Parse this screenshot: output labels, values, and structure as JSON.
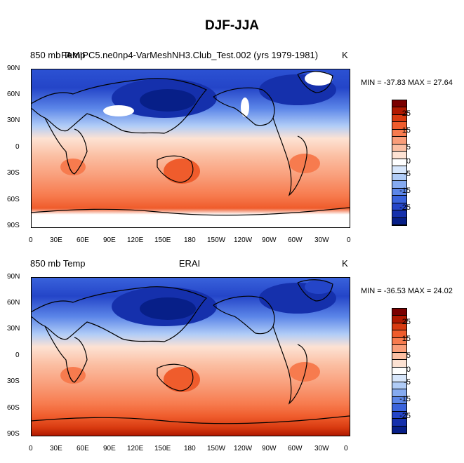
{
  "figure_title": "DJF-JJA",
  "panels": [
    {
      "left_label": "850 mb Temp",
      "center_label": "FAMIPC5.ne0np4-VarMeshNH3.Club_Test.002 (yrs 1979-1981)",
      "right_label": "K",
      "min_max_text": "MIN = -37.83 MAX =  27.64"
    },
    {
      "left_label": "850 mb Temp",
      "center_label": "ERAI",
      "right_label": "K",
      "min_max_text": "MIN = -36.53 MAX =  24.02"
    }
  ],
  "lat_ticks": [
    "90N",
    "60N",
    "30N",
    "0",
    "30S",
    "60S",
    "90S"
  ],
  "lon_ticks": [
    "0",
    "30E",
    "60E",
    "90E",
    "120E",
    "150E",
    "180",
    "150W",
    "120W",
    "90W",
    "60W",
    "30W",
    "0"
  ],
  "colorbar": {
    "labels": [
      "25",
      "15",
      "5",
      "0",
      "-5",
      "-15",
      "-25"
    ],
    "colors": [
      "#7a0000",
      "#b01800",
      "#d83a10",
      "#ef5c2c",
      "#f77b4e",
      "#f99d79",
      "#fbbfa3",
      "#fde2d3",
      "#ffffff",
      "#d7e6fb",
      "#b0ccf7",
      "#85aaf0",
      "#5c86e8",
      "#3a63dc",
      "#2445c8",
      "#1530ac",
      "#071f88"
    ]
  }
}
